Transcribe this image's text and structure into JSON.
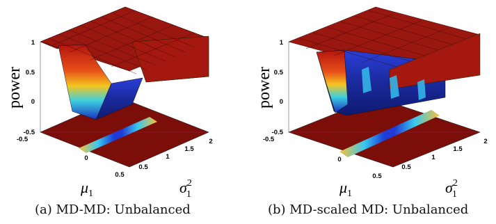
{
  "chart_data": [
    {
      "type": "surface3d",
      "panel": "a",
      "caption": "(a) MD-MD: Unbalanced",
      "zlabel": "power",
      "xlabel": "μ",
      "xlabel_sub": "1",
      "ylabel": "σ",
      "ylabel_sup": "2",
      "ylabel_sub": "1",
      "zlim": [
        -0.5,
        1
      ],
      "z_ticks": [
        "1",
        "0.5",
        "0",
        "-0.5"
      ],
      "x_ticks": [
        "-0.5",
        "0",
        "0.5"
      ],
      "y_ticks": [
        "0.5",
        "1",
        "1.5",
        "2"
      ],
      "plateau_power": 1,
      "dip_min_power": -0.3,
      "dip_location": {
        "mu1": 0,
        "sigma1_sq": 1
      }
    },
    {
      "type": "surface3d",
      "panel": "b",
      "caption": "(b) MD-scaled MD: Unbalanced",
      "zlabel": "power",
      "xlabel": "μ",
      "xlabel_sub": "1",
      "ylabel": "σ",
      "ylabel_sup": "2",
      "ylabel_sub": "1",
      "zlim": [
        -0.5,
        1
      ],
      "z_ticks": [
        "1",
        "0.5",
        "0",
        "-0.5"
      ],
      "x_ticks": [
        "-0.5",
        "0",
        "0.5"
      ],
      "y_ticks": [
        "0.5",
        "1",
        "1.5",
        "2"
      ],
      "plateau_power": 1,
      "dip_min_power": -0.1,
      "dip_location": {
        "mu1": 0,
        "sigma1_sq": 1
      }
    }
  ]
}
